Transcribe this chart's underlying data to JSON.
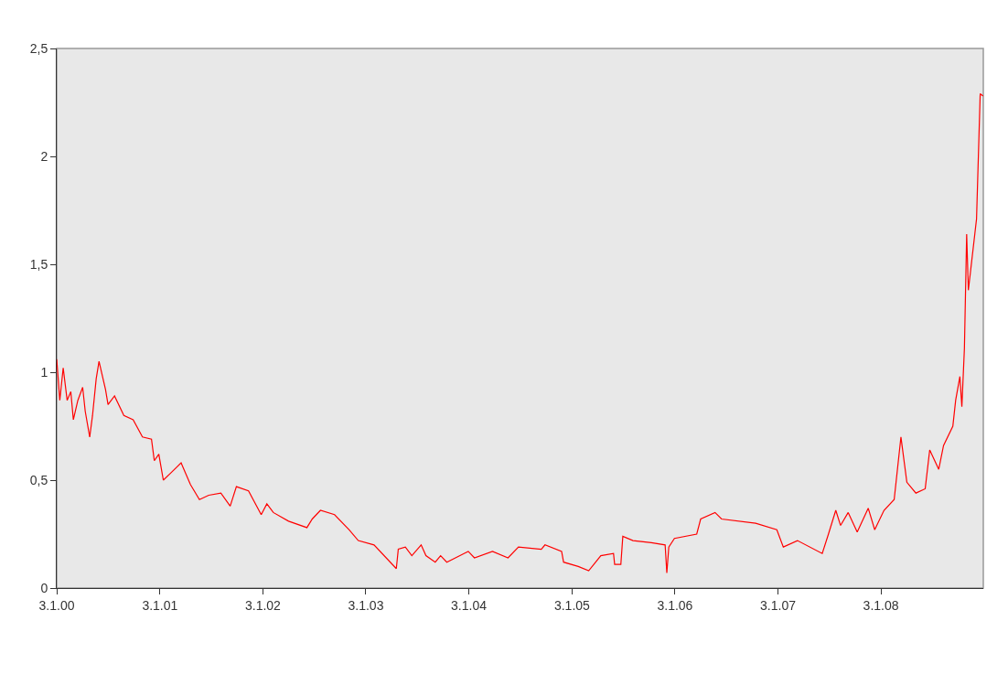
{
  "chart_data": {
    "type": "line",
    "x": [
      "2000-01-03",
      "2000-01-14",
      "2000-01-26",
      "2000-02-09",
      "2000-02-22",
      "2000-03-02",
      "2000-03-18",
      "2000-04-04",
      "2000-04-13",
      "2000-04-29",
      "2000-05-09",
      "2000-05-22",
      "2000-06-01",
      "2000-06-24",
      "2000-07-03",
      "2000-07-26",
      "2000-08-28",
      "2000-09-30",
      "2000-11-02",
      "2000-12-04",
      "2000-12-14",
      "2000-12-30",
      "2001-01-15",
      "2001-02-08",
      "2001-03-19",
      "2001-04-21",
      "2001-05-23",
      "2001-06-25",
      "2001-08-07",
      "2001-09-09",
      "2001-10-01",
      "2001-11-13",
      "2001-12-28",
      "2002-01-17",
      "2002-02-09",
      "2002-04-04",
      "2002-06-08",
      "2002-06-27",
      "2002-07-26",
      "2002-09-14",
      "2002-11-05",
      "2002-12-07",
      "2003-02-01",
      "2003-04-21",
      "2003-04-28",
      "2003-05-23",
      "2003-06-15",
      "2003-07-18",
      "2003-08-04",
      "2003-09-06",
      "2003-09-25",
      "2003-10-17",
      "2004-01-01",
      "2004-01-23",
      "2004-03-27",
      "2004-05-21",
      "2004-06-27",
      "2004-09-16",
      "2004-09-29",
      "2004-11-27",
      "2004-12-04",
      "2005-01-25",
      "2005-03-03",
      "2005-04-15",
      "2005-05-30",
      "2005-06-03",
      "2005-06-25",
      "2005-07-02",
      "2005-08-07",
      "2005-10-11",
      "2005-11-29",
      "2005-12-05",
      "2005-12-12",
      "2006-01-01",
      "2006-03-21",
      "2006-04-04",
      "2006-05-25",
      "2006-06-17",
      "2006-10-16",
      "2006-12-30",
      "2007-01-22",
      "2007-03-13",
      "2007-06-09",
      "2007-07-01",
      "2007-07-27",
      "2007-08-13",
      "2007-09-09",
      "2007-10-11",
      "2007-11-19",
      "2007-12-12",
      "2008-01-14",
      "2008-02-19",
      "2008-03-14",
      "2008-04-04",
      "2008-05-06",
      "2008-06-08",
      "2008-06-24",
      "2008-07-26",
      "2008-08-12",
      "2008-09-14",
      "2008-09-24",
      "2008-10-09",
      "2008-10-16",
      "2008-10-25",
      "2008-11-02",
      "2008-11-08",
      "2008-12-07",
      "2008-12-20",
      "2008-12-30"
    ],
    "series": [
      {
        "color": "#ff0000",
        "values": [
          1.06,
          0.87,
          1.02,
          0.87,
          0.91,
          0.78,
          0.87,
          0.93,
          0.82,
          0.7,
          0.8,
          0.97,
          1.05,
          0.92,
          0.85,
          0.89,
          0.8,
          0.78,
          0.7,
          0.69,
          0.59,
          0.62,
          0.5,
          0.53,
          0.58,
          0.48,
          0.41,
          0.43,
          0.44,
          0.38,
          0.47,
          0.45,
          0.34,
          0.39,
          0.35,
          0.31,
          0.28,
          0.32,
          0.36,
          0.34,
          0.27,
          0.22,
          0.2,
          0.09,
          0.18,
          0.19,
          0.15,
          0.2,
          0.15,
          0.12,
          0.15,
          0.12,
          0.17,
          0.14,
          0.17,
          0.14,
          0.19,
          0.18,
          0.2,
          0.17,
          0.12,
          0.1,
          0.08,
          0.15,
          0.16,
          0.11,
          0.11,
          0.24,
          0.22,
          0.21,
          0.2,
          0.07,
          0.19,
          0.23,
          0.25,
          0.32,
          0.35,
          0.32,
          0.3,
          0.27,
          0.19,
          0.22,
          0.16,
          0.25,
          0.36,
          0.29,
          0.35,
          0.26,
          0.37,
          0.27,
          0.36,
          0.41,
          0.7,
          0.49,
          0.44,
          0.46,
          0.64,
          0.55,
          0.66,
          0.75,
          0.87,
          0.98,
          0.84,
          1.11,
          1.64,
          1.38,
          1.71,
          2.29,
          2.28
        ]
      }
    ],
    "xlim": [
      "2000-01-03",
      "2008-12-31"
    ],
    "xticks": [
      {
        "value": "2000-01-03",
        "label": "3.1.00"
      },
      {
        "value": "2001-01-03",
        "label": "3.1.01"
      },
      {
        "value": "2002-01-03",
        "label": "3.1.02"
      },
      {
        "value": "2003-01-03",
        "label": "3.1.03"
      },
      {
        "value": "2004-01-03",
        "label": "3.1.04"
      },
      {
        "value": "2005-01-03",
        "label": "3.1.05"
      },
      {
        "value": "2006-01-03",
        "label": "3.1.06"
      },
      {
        "value": "2007-01-03",
        "label": "3.1.07"
      },
      {
        "value": "2008-01-03",
        "label": "3.1.08"
      }
    ],
    "ylim": [
      0,
      2.5
    ],
    "yticks": [
      {
        "value": 0,
        "label": "0"
      },
      {
        "value": 0.5,
        "label": "0,5"
      },
      {
        "value": 1,
        "label": "1"
      },
      {
        "value": 1.5,
        "label": "1,5"
      },
      {
        "value": 2,
        "label": "2"
      },
      {
        "value": 2.5,
        "label": "2,5"
      }
    ],
    "grid": false,
    "marker": "none",
    "line_style": "solid"
  }
}
